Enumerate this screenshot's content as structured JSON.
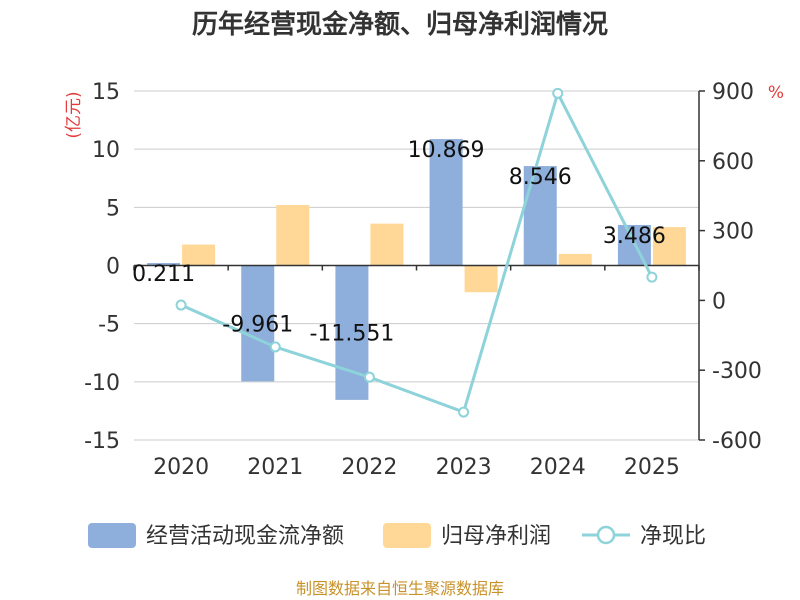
{
  "chart_data": {
    "type": "bar",
    "title": "历年经营现金净额、归母净利润情况",
    "categories": [
      "2020",
      "2021",
      "2022",
      "2023",
      "2024",
      "2025"
    ],
    "series": [
      {
        "name": "经营活动现金流净额",
        "kind": "bar",
        "axis": "left",
        "color": "#8eaedb",
        "values": [
          0.211,
          -9.961,
          -11.551,
          10.869,
          8.546,
          3.486
        ],
        "labels": [
          "0.211",
          "-9.961",
          "-11.551",
          "10.869",
          "8.546",
          "3.486"
        ]
      },
      {
        "name": "归母净利润",
        "kind": "bar",
        "axis": "left",
        "color": "#ffd897",
        "values": [
          1.8,
          5.2,
          3.6,
          -2.3,
          1.0,
          3.3
        ]
      },
      {
        "name": "净现比",
        "kind": "line",
        "axis": "right",
        "color": "#8dd3d9",
        "values": [
          -20,
          -200,
          -330,
          -480,
          890,
          100
        ]
      }
    ],
    "y_left": {
      "label": "(亿元)",
      "min": -15,
      "max": 15,
      "ticks": [
        15,
        10,
        5,
        0,
        -5,
        -10,
        -15
      ]
    },
    "y_right": {
      "label": "%",
      "min": -600,
      "max": 900,
      "ticks": [
        900,
        600,
        300,
        0,
        -300,
        -600
      ]
    },
    "legend_position": "bottom",
    "source": "制图数据来自恒生聚源数据库",
    "colors": {
      "axis_label": "#e03c3c",
      "source": "#c8922a",
      "grid": "#cccccc"
    }
  }
}
